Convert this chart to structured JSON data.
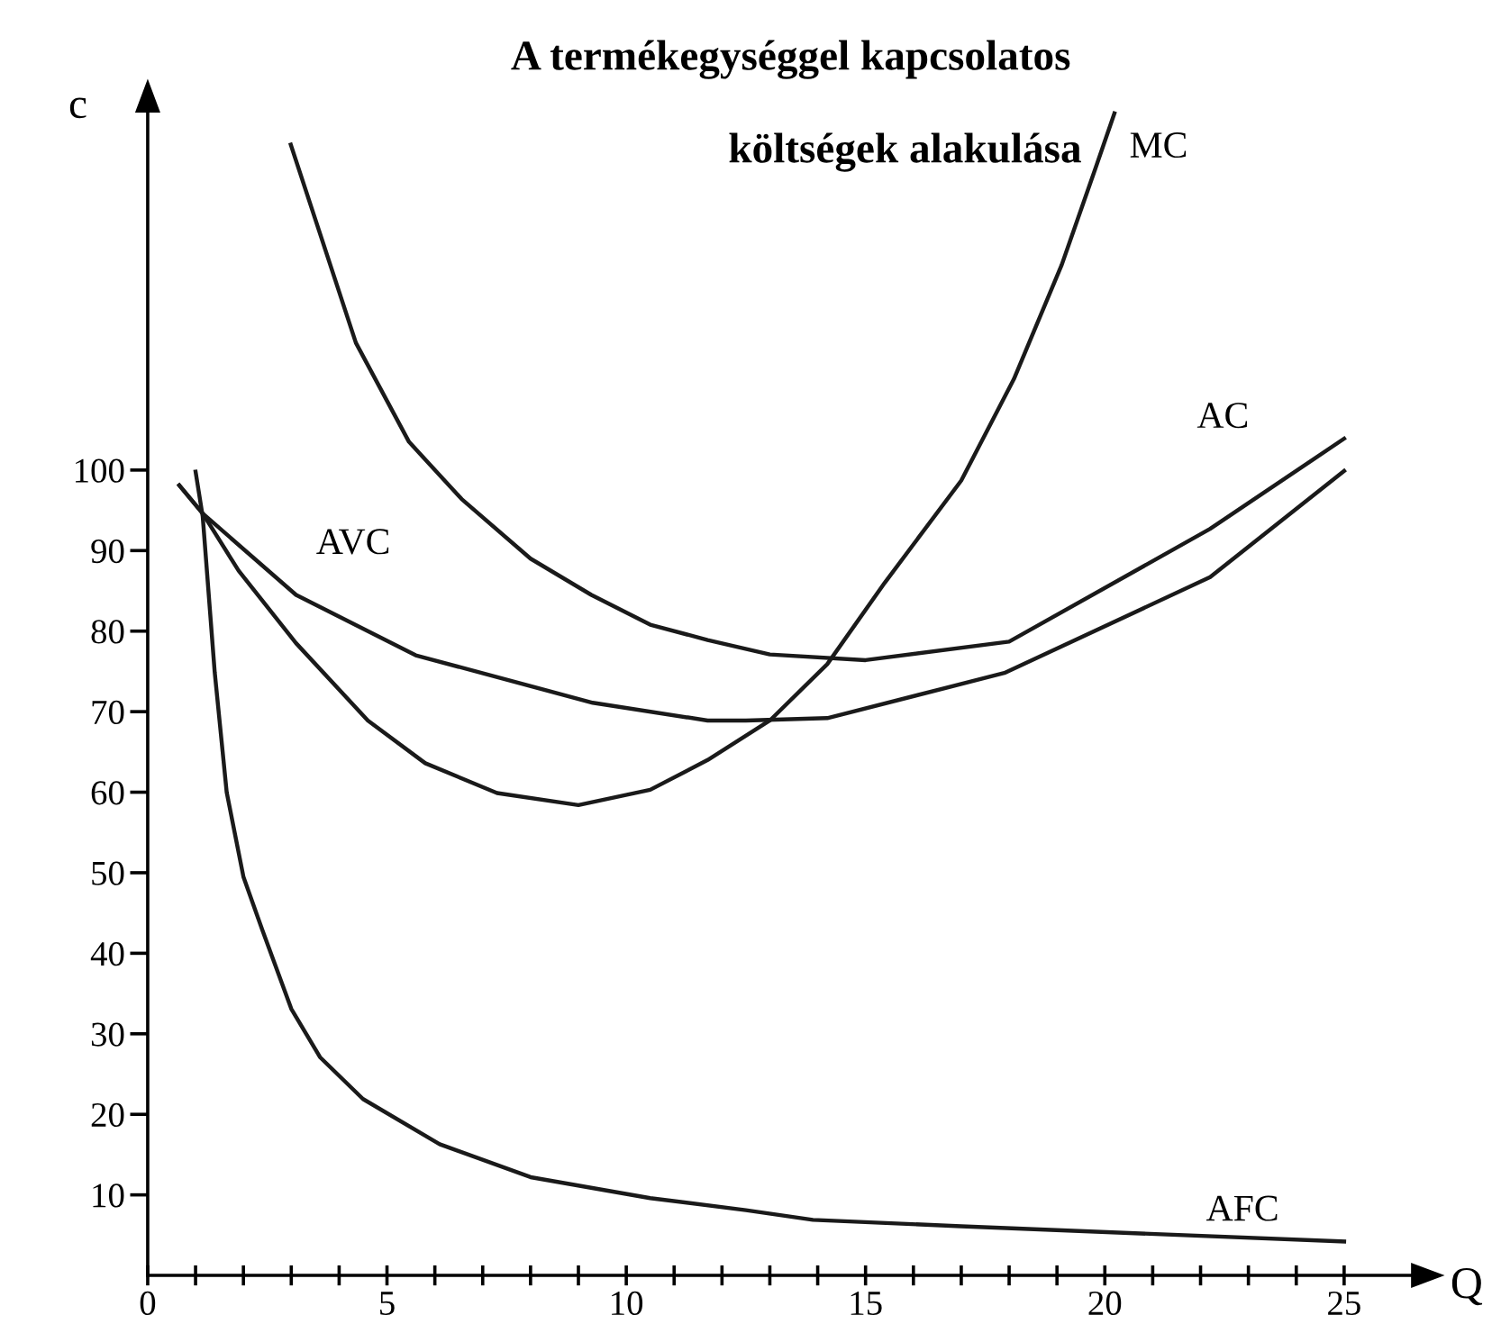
{
  "chart_data": {
    "type": "line",
    "title": "A termékegységgel kapcsolatos",
    "subtitle": "költségek alakulása",
    "xlabel": "Q",
    "ylabel": "c",
    "xlim": [
      0,
      26.5
    ],
    "ylim": [
      0,
      145
    ],
    "xticks": [
      0,
      {
        "value": 1,
        "label": null
      },
      {
        "value": 2,
        "label": null
      },
      {
        "value": 3,
        "label": null
      },
      {
        "value": 4,
        "label": null
      },
      5,
      {
        "value": 6,
        "label": null
      },
      {
        "value": 7,
        "label": null
      },
      {
        "value": 8,
        "label": null
      },
      {
        "value": 9,
        "label": null
      },
      10,
      {
        "value": 11,
        "label": null
      },
      {
        "value": 12,
        "label": null
      },
      {
        "value": 13,
        "label": null
      },
      {
        "value": 14,
        "label": null
      },
      15,
      {
        "value": 16,
        "label": null
      },
      {
        "value": 17,
        "label": null
      },
      {
        "value": 18,
        "label": null
      },
      {
        "value": 19,
        "label": null
      },
      20,
      {
        "value": 21,
        "label": null
      },
      {
        "value": 22,
        "label": null
      },
      {
        "value": 23,
        "label": null
      },
      {
        "value": 24,
        "label": null
      },
      25
    ],
    "yticks": [
      10,
      20,
      30,
      40,
      50,
      60,
      70,
      80,
      90,
      100
    ],
    "grid": false,
    "legend": false,
    "marker": "none",
    "line_style": "solid",
    "series": [
      {
        "name": "MC",
        "color": "#1a1a1a",
        "x": [
          0.66,
          1.15,
          1.9,
          3.1,
          4.6,
          5.8,
          7.3,
          9.0,
          10.5,
          11.7,
          13.0,
          14.2,
          15.4,
          17.0,
          18.1,
          19.1,
          19.8,
          20.2
        ],
        "values": [
          98.1,
          94.6,
          87.5,
          78.5,
          68.9,
          63.6,
          59.9,
          58.4,
          60.3,
          64.0,
          68.9,
          75.9,
          86.0,
          98.7,
          111.3,
          125.5,
          137.4,
          144.3
        ]
      },
      {
        "name": "AC",
        "color": "#1a1a1a",
        "x": [
          2.99,
          4.35,
          5.46,
          6.56,
          8.0,
          9.27,
          10.5,
          11.7,
          13.0,
          15.0,
          18.0,
          22.2,
          25.0
        ],
        "values": [
          140.4,
          115.8,
          103.5,
          96.4,
          89.0,
          84.5,
          80.8,
          78.9,
          77.1,
          76.4,
          78.7,
          92.7,
          103.9
        ]
      },
      {
        "name": "AVC",
        "color": "#1a1a1a",
        "x": [
          0.66,
          1.15,
          3.1,
          5.6,
          9.3,
          11.7,
          12.5,
          14.2,
          17.9,
          22.2,
          25.0
        ],
        "values": [
          98.1,
          94.6,
          84.5,
          77.0,
          71.1,
          68.9,
          68.9,
          69.2,
          74.8,
          86.7,
          99.9
        ]
      },
      {
        "name": "AFC",
        "color": "#1a1a1a",
        "x": [
          1.0,
          1.15,
          1.4,
          1.65,
          2.0,
          2.4,
          3.0,
          3.6,
          4.5,
          6.1,
          8.0,
          10.5,
          12.5,
          13.9,
          17.0,
          25.0
        ],
        "values": [
          99.8,
          94.2,
          74.9,
          60.0,
          49.5,
          42.8,
          33.1,
          27.1,
          21.9,
          16.3,
          12.2,
          9.6,
          8.1,
          6.9,
          6.1,
          4.2
        ]
      }
    ]
  }
}
